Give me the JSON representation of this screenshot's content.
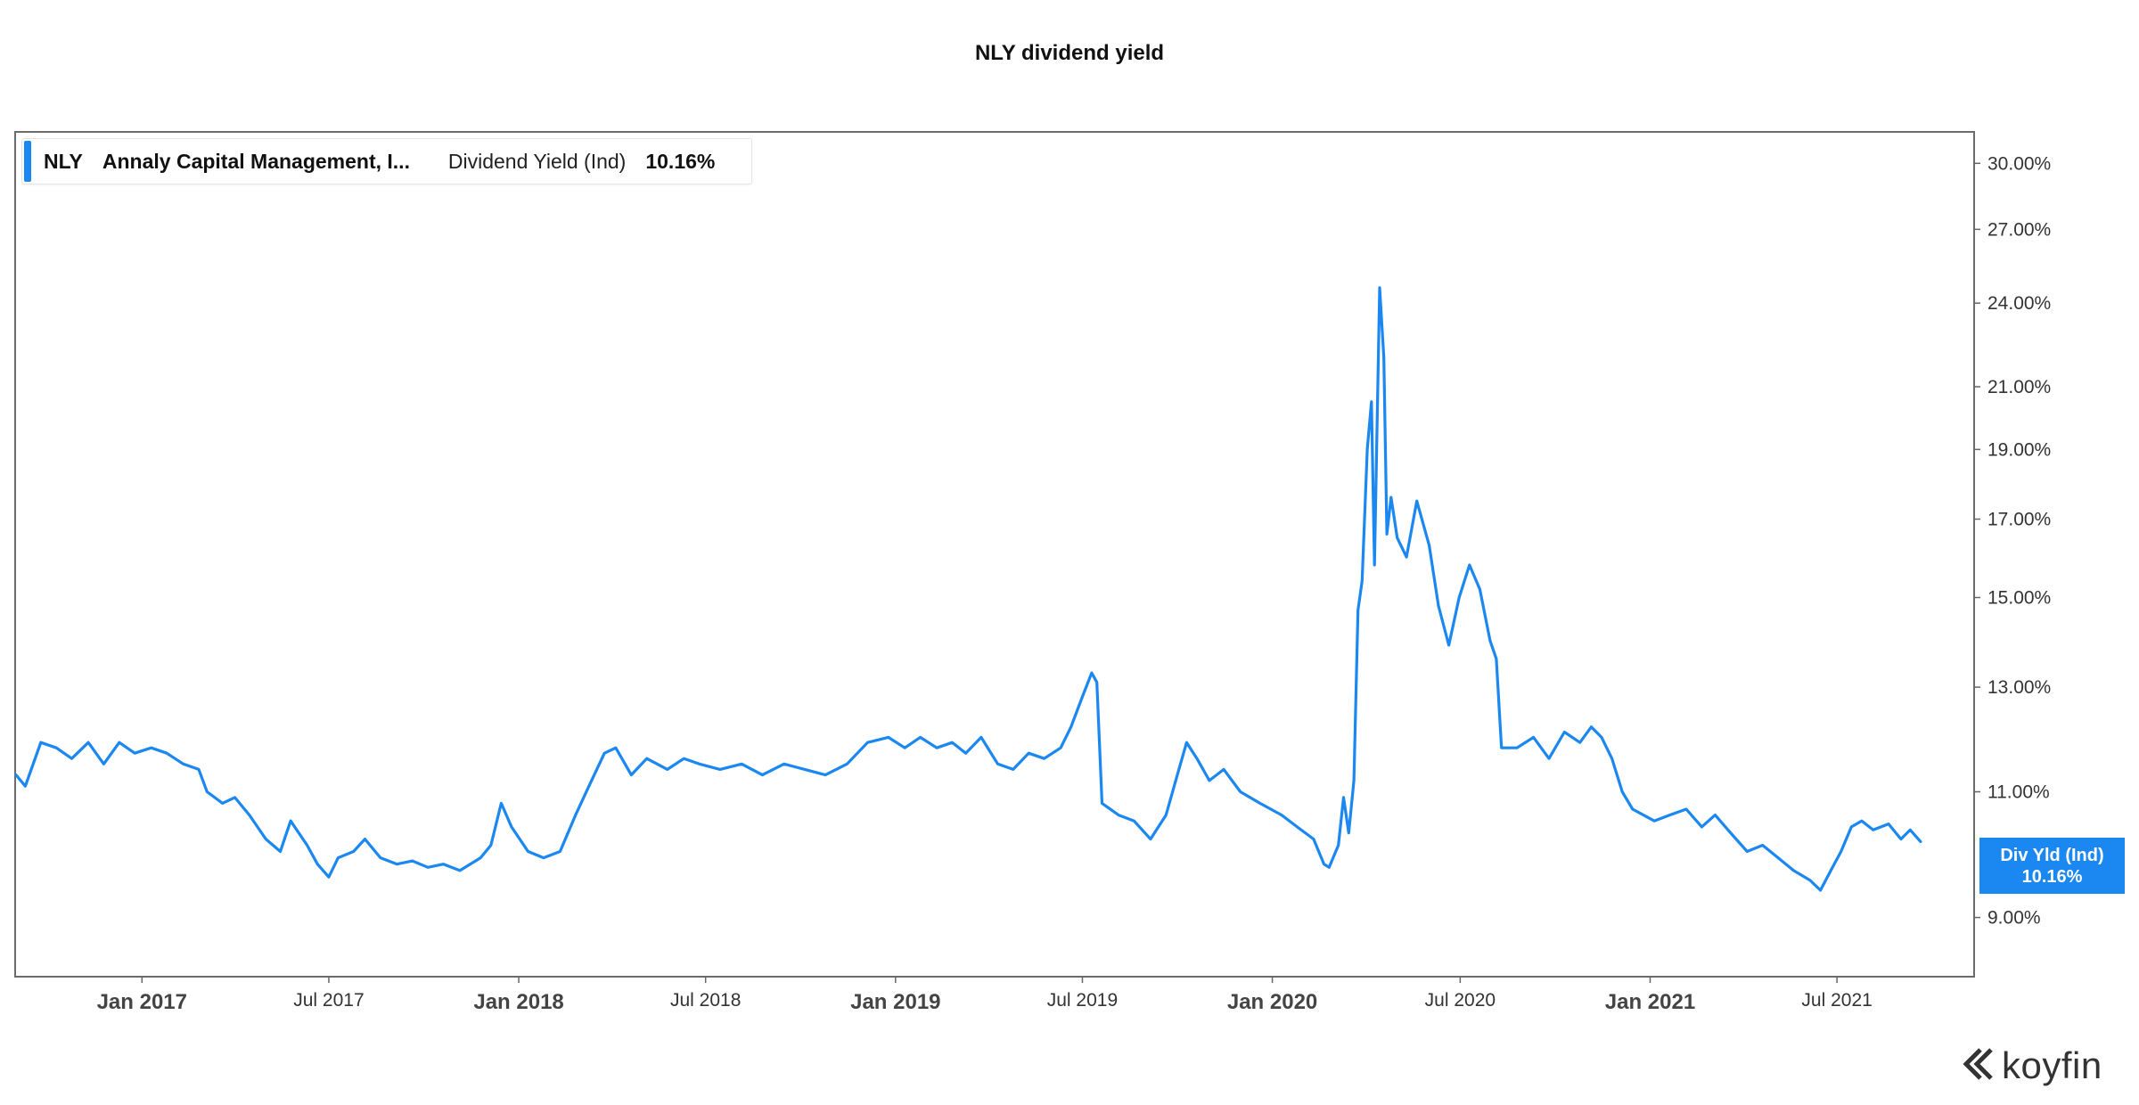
{
  "title": "NLY dividend yield",
  "legend": {
    "ticker": "NLY",
    "company": "Annaly Capital Management, I...",
    "metric": "Dividend Yield (Ind)",
    "value": "10.16%"
  },
  "last_value_tag": {
    "label": "Div Yld (Ind)",
    "value": "10.16%"
  },
  "brand": "koyfin",
  "colors": {
    "line": "#1b87f0",
    "frame": "#6b6b6b"
  },
  "chart_data": {
    "type": "line",
    "title": "NLY dividend yield",
    "y_scale": "log",
    "ylim": [
      8.2,
      31.5
    ],
    "xlim": [
      "2016-09-01",
      "2021-11-10"
    ],
    "y_ticks": [
      {
        "value": 30,
        "label": "30.00%"
      },
      {
        "value": 27,
        "label": "27.00%"
      },
      {
        "value": 24,
        "label": "24.00%"
      },
      {
        "value": 21,
        "label": "21.00%"
      },
      {
        "value": 19,
        "label": "19.00%"
      },
      {
        "value": 17,
        "label": "17.00%"
      },
      {
        "value": 15,
        "label": "15.00%"
      },
      {
        "value": 13,
        "label": "13.00%"
      },
      {
        "value": 11,
        "label": "11.00%"
      },
      {
        "value": 9,
        "label": "9.00%"
      }
    ],
    "x_ticks": [
      {
        "date": "2017-01-01",
        "label": "Jan 2017",
        "major": true
      },
      {
        "date": "2017-07-01",
        "label": "Jul 2017",
        "major": false
      },
      {
        "date": "2018-01-01",
        "label": "Jan 2018",
        "major": true
      },
      {
        "date": "2018-07-01",
        "label": "Jul 2018",
        "major": false
      },
      {
        "date": "2019-01-01",
        "label": "Jan 2019",
        "major": true
      },
      {
        "date": "2019-07-01",
        "label": "Jul 2019",
        "major": false
      },
      {
        "date": "2020-01-01",
        "label": "Jan 2020",
        "major": true
      },
      {
        "date": "2020-07-01",
        "label": "Jul 2020",
        "major": false
      },
      {
        "date": "2021-01-01",
        "label": "Jan 2021",
        "major": true
      },
      {
        "date": "2021-07-01",
        "label": "Jul 2021",
        "major": false
      }
    ],
    "series": [
      {
        "name": "Dividend Yield (Ind)",
        "points": [
          [
            "2016-09-01",
            11.3
          ],
          [
            "2016-09-10",
            11.1
          ],
          [
            "2016-09-25",
            11.9
          ],
          [
            "2016-10-10",
            11.8
          ],
          [
            "2016-10-25",
            11.6
          ],
          [
            "2016-11-10",
            11.9
          ],
          [
            "2016-11-25",
            11.5
          ],
          [
            "2016-12-10",
            11.9
          ],
          [
            "2016-12-25",
            11.7
          ],
          [
            "2017-01-10",
            11.8
          ],
          [
            "2017-01-25",
            11.7
          ],
          [
            "2017-02-10",
            11.5
          ],
          [
            "2017-02-25",
            11.4
          ],
          [
            "2017-03-05",
            11.0
          ],
          [
            "2017-03-20",
            10.8
          ],
          [
            "2017-04-01",
            10.9
          ],
          [
            "2017-04-15",
            10.6
          ],
          [
            "2017-05-01",
            10.2
          ],
          [
            "2017-05-15",
            10.0
          ],
          [
            "2017-05-25",
            10.5
          ],
          [
            "2017-06-10",
            10.1
          ],
          [
            "2017-06-20",
            9.8
          ],
          [
            "2017-07-01",
            9.6
          ],
          [
            "2017-07-10",
            9.9
          ],
          [
            "2017-07-25",
            10.0
          ],
          [
            "2017-08-05",
            10.2
          ],
          [
            "2017-08-20",
            9.9
          ],
          [
            "2017-09-05",
            9.8
          ],
          [
            "2017-09-20",
            9.85
          ],
          [
            "2017-10-05",
            9.75
          ],
          [
            "2017-10-20",
            9.8
          ],
          [
            "2017-11-05",
            9.7
          ],
          [
            "2017-11-25",
            9.9
          ],
          [
            "2017-12-05",
            10.1
          ],
          [
            "2017-12-15",
            10.8
          ],
          [
            "2017-12-25",
            10.4
          ],
          [
            "2018-01-10",
            10.0
          ],
          [
            "2018-01-25",
            9.9
          ],
          [
            "2018-02-10",
            10.0
          ],
          [
            "2018-02-25",
            10.6
          ],
          [
            "2018-03-10",
            11.1
          ],
          [
            "2018-03-25",
            11.7
          ],
          [
            "2018-04-05",
            11.8
          ],
          [
            "2018-04-20",
            11.3
          ],
          [
            "2018-05-05",
            11.6
          ],
          [
            "2018-05-25",
            11.4
          ],
          [
            "2018-06-10",
            11.6
          ],
          [
            "2018-06-25",
            11.5
          ],
          [
            "2018-07-15",
            11.4
          ],
          [
            "2018-08-05",
            11.5
          ],
          [
            "2018-08-25",
            11.3
          ],
          [
            "2018-09-15",
            11.5
          ],
          [
            "2018-10-05",
            11.4
          ],
          [
            "2018-10-25",
            11.3
          ],
          [
            "2018-11-15",
            11.5
          ],
          [
            "2018-12-05",
            11.9
          ],
          [
            "2018-12-25",
            12.0
          ],
          [
            "2019-01-10",
            11.8
          ],
          [
            "2019-01-25",
            12.0
          ],
          [
            "2019-02-10",
            11.8
          ],
          [
            "2019-02-25",
            11.9
          ],
          [
            "2019-03-10",
            11.7
          ],
          [
            "2019-03-25",
            12.0
          ],
          [
            "2019-04-10",
            11.5
          ],
          [
            "2019-04-25",
            11.4
          ],
          [
            "2019-05-10",
            11.7
          ],
          [
            "2019-05-25",
            11.6
          ],
          [
            "2019-06-10",
            11.8
          ],
          [
            "2019-06-20",
            12.2
          ],
          [
            "2019-07-01",
            12.8
          ],
          [
            "2019-07-10",
            13.3
          ],
          [
            "2019-07-15",
            13.1
          ],
          [
            "2019-07-20",
            10.8
          ],
          [
            "2019-08-05",
            10.6
          ],
          [
            "2019-08-20",
            10.5
          ],
          [
            "2019-09-05",
            10.2
          ],
          [
            "2019-09-20",
            10.6
          ],
          [
            "2019-10-01",
            11.3
          ],
          [
            "2019-10-10",
            11.9
          ],
          [
            "2019-10-20",
            11.6
          ],
          [
            "2019-11-01",
            11.2
          ],
          [
            "2019-11-15",
            11.4
          ],
          [
            "2019-12-01",
            11.0
          ],
          [
            "2019-12-20",
            10.8
          ],
          [
            "2020-01-10",
            10.6
          ],
          [
            "2020-01-25",
            10.4
          ],
          [
            "2020-02-10",
            10.2
          ],
          [
            "2020-02-20",
            9.8
          ],
          [
            "2020-02-25",
            9.75
          ],
          [
            "2020-03-05",
            10.1
          ],
          [
            "2020-03-10",
            10.9
          ],
          [
            "2020-03-15",
            10.3
          ],
          [
            "2020-03-20",
            11.2
          ],
          [
            "2020-03-24",
            14.7
          ],
          [
            "2020-03-28",
            15.4
          ],
          [
            "2020-04-02",
            19.0
          ],
          [
            "2020-04-06",
            20.5
          ],
          [
            "2020-04-09",
            15.8
          ],
          [
            "2020-04-14",
            24.6
          ],
          [
            "2020-04-18",
            22.0
          ],
          [
            "2020-04-21",
            16.6
          ],
          [
            "2020-04-25",
            17.6
          ],
          [
            "2020-05-01",
            16.5
          ],
          [
            "2020-05-10",
            16.0
          ],
          [
            "2020-05-20",
            17.5
          ],
          [
            "2020-06-01",
            16.3
          ],
          [
            "2020-06-10",
            14.8
          ],
          [
            "2020-06-20",
            13.9
          ],
          [
            "2020-06-30",
            15.0
          ],
          [
            "2020-07-10",
            15.8
          ],
          [
            "2020-07-20",
            15.2
          ],
          [
            "2020-07-30",
            14.0
          ],
          [
            "2020-08-05",
            13.6
          ],
          [
            "2020-08-10",
            11.8
          ],
          [
            "2020-08-25",
            11.8
          ],
          [
            "2020-09-10",
            12.0
          ],
          [
            "2020-09-25",
            11.6
          ],
          [
            "2020-10-10",
            12.1
          ],
          [
            "2020-10-25",
            11.9
          ],
          [
            "2020-11-05",
            12.2
          ],
          [
            "2020-11-15",
            12.0
          ],
          [
            "2020-11-25",
            11.6
          ],
          [
            "2020-12-05",
            11.0
          ],
          [
            "2020-12-15",
            10.7
          ],
          [
            "2021-01-05",
            10.5
          ],
          [
            "2021-01-20",
            10.6
          ],
          [
            "2021-02-05",
            10.7
          ],
          [
            "2021-02-20",
            10.4
          ],
          [
            "2021-03-05",
            10.6
          ],
          [
            "2021-03-20",
            10.3
          ],
          [
            "2021-04-05",
            10.0
          ],
          [
            "2021-04-20",
            10.1
          ],
          [
            "2021-05-05",
            9.9
          ],
          [
            "2021-05-20",
            9.7
          ],
          [
            "2021-06-05",
            9.55
          ],
          [
            "2021-06-15",
            9.4
          ],
          [
            "2021-06-25",
            9.7
          ],
          [
            "2021-07-05",
            10.0
          ],
          [
            "2021-07-15",
            10.4
          ],
          [
            "2021-07-25",
            10.5
          ],
          [
            "2021-08-05",
            10.35
          ],
          [
            "2021-08-20",
            10.45
          ],
          [
            "2021-09-01",
            10.2
          ],
          [
            "2021-09-10",
            10.35
          ],
          [
            "2021-09-20",
            10.16
          ]
        ]
      }
    ]
  }
}
